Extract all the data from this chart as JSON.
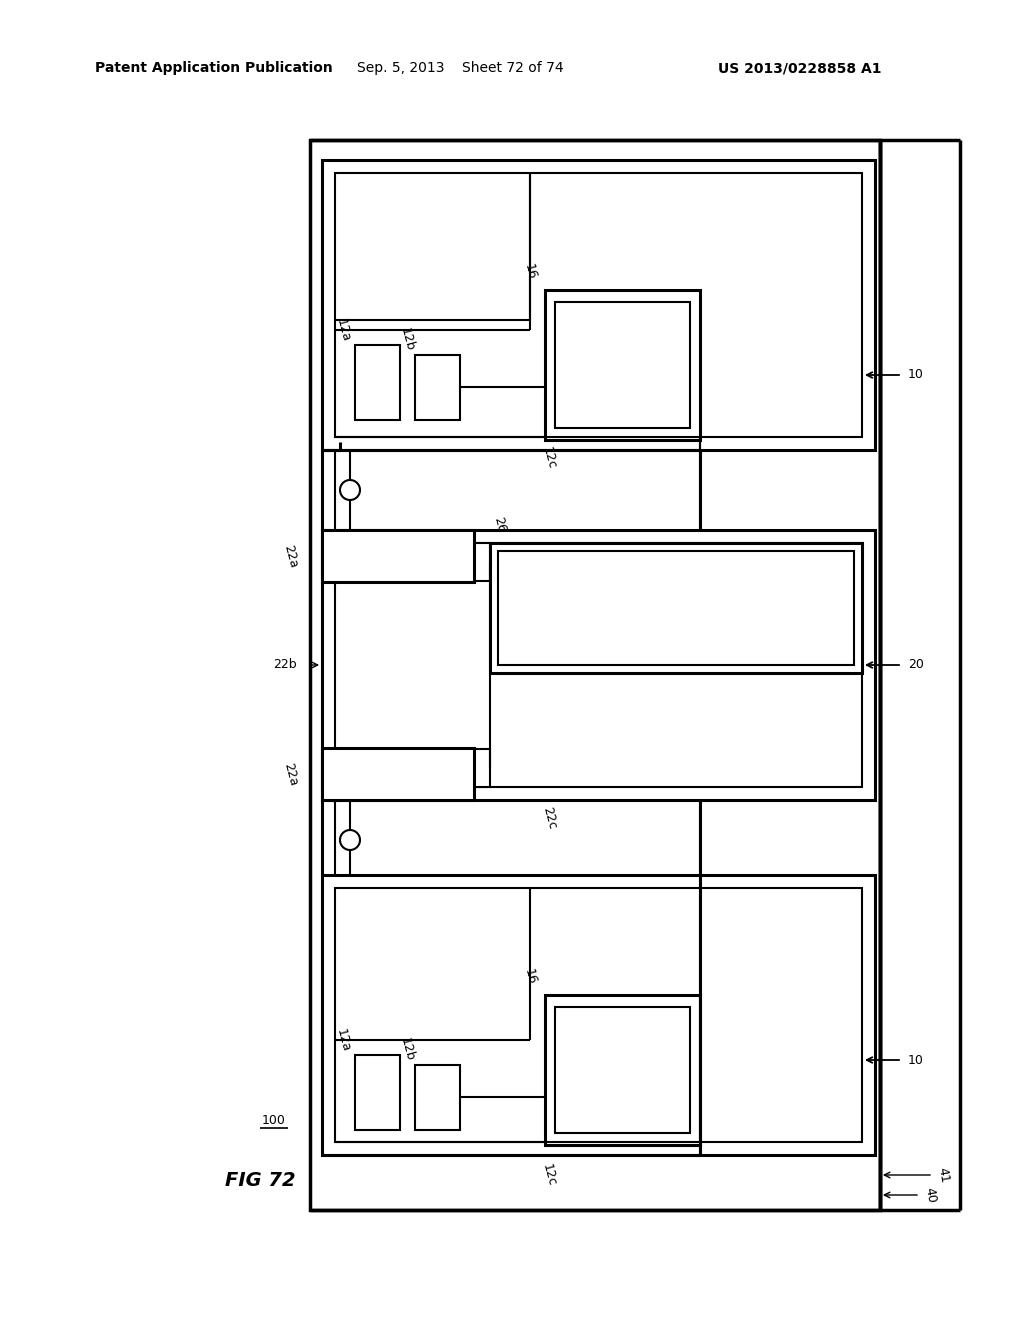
{
  "background": "#ffffff",
  "lc": "#000000",
  "header_left": "Patent Application Publication",
  "header_center": "Sep. 5, 2013    Sheet 72 of 74",
  "header_right": "US 2013/0228858 A1",
  "fig_label": "FIG 72",
  "ref_100": "100",
  "lw_thin": 1.5,
  "lw_thick": 2.2,
  "lw_border": 2.5,
  "fs_hdr": 10,
  "fs_lbl": 9
}
